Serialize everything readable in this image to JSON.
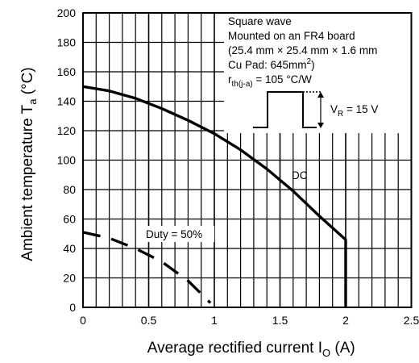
{
  "chart_data": {
    "type": "line",
    "xlim": [
      0,
      2.5
    ],
    "ylim": [
      0,
      200
    ],
    "x_ticks": [
      0,
      0.5,
      1,
      1.5,
      2,
      2.5
    ],
    "x_tick_labels": [
      "0",
      "0.5",
      "1",
      "1.5",
      "2",
      "2.5"
    ],
    "y_ticks": [
      0,
      20,
      40,
      60,
      80,
      100,
      120,
      140,
      160,
      180,
      200
    ],
    "y_tick_labels": [
      "0",
      "20",
      "40",
      "60",
      "80",
      "100",
      "120",
      "140",
      "160",
      "180",
      "200"
    ],
    "xlabel": {
      "main": "Average rectified current  I",
      "sub": "O",
      "unit": "  (A)"
    },
    "ylabel": {
      "main": "Ambient temperature  T",
      "sub": "a",
      "unit": "  (°C)"
    },
    "grid": {
      "x_minor_step": 0.1,
      "y_major_step": 20
    },
    "series": [
      {
        "name": "DC",
        "style": "solid",
        "points": [
          [
            0,
            150
          ],
          [
            0.2,
            147
          ],
          [
            0.4,
            142
          ],
          [
            0.6,
            135
          ],
          [
            0.8,
            127
          ],
          [
            1.0,
            118
          ],
          [
            1.2,
            107
          ],
          [
            1.4,
            94
          ],
          [
            1.6,
            79
          ],
          [
            1.8,
            62
          ],
          [
            2.0,
            46
          ],
          [
            2.0,
            0
          ]
        ]
      },
      {
        "name": "Duty = 50%",
        "style": "dashed",
        "points": [
          [
            0,
            51
          ],
          [
            0.2,
            47
          ],
          [
            0.4,
            40
          ],
          [
            0.6,
            31
          ],
          [
            0.8,
            18
          ],
          [
            0.97,
            3
          ]
        ]
      }
    ],
    "annotation_box": {
      "lines": [
        {
          "text": "Square wave"
        },
        {
          "text": "Mounted on an FR4 board"
        },
        {
          "text": "(25.4 mm × 25.4 mm × 1.6 mm"
        },
        {
          "text": "Cu Pad: 645mm",
          "sup": "2",
          "tail": ")"
        },
        {
          "text": "r",
          "sub": "th(j-a)",
          "tail": " = 105 °C/W"
        }
      ],
      "waveform_label": {
        "text": "V",
        "sub": "R",
        "tail": " = 15 V"
      }
    },
    "label_dc": "DC",
    "label_duty": "Duty = 50%"
  }
}
